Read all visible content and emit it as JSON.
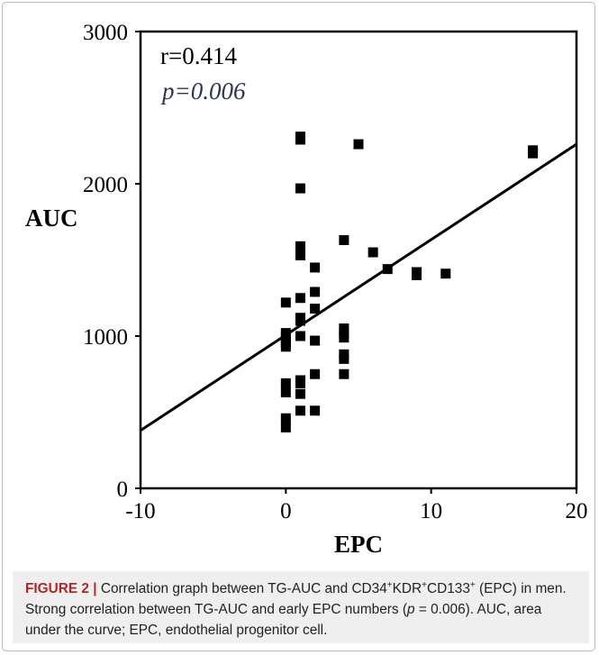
{
  "chart_data": {
    "type": "scatter",
    "xlabel": "EPC",
    "ylabel": "AUC",
    "xlim": [
      -10,
      20
    ],
    "ylim": [
      0,
      3000
    ],
    "xticks": [
      "-10",
      "0",
      "10",
      "20"
    ],
    "yticks": [
      "0",
      "1000",
      "2000",
      "3000"
    ],
    "annotations": {
      "r": "r=0.414",
      "p": "p=0.006"
    },
    "trendline": {
      "x": [
        -10,
        20
      ],
      "y": [
        380,
        2260
      ]
    },
    "points": [
      {
        "x": 0,
        "y": 1220
      },
      {
        "x": 0,
        "y": 1020
      },
      {
        "x": 0,
        "y": 990
      },
      {
        "x": 0,
        "y": 960
      },
      {
        "x": 0,
        "y": 930
      },
      {
        "x": 0,
        "y": 690
      },
      {
        "x": 0,
        "y": 630
      },
      {
        "x": 0,
        "y": 460
      },
      {
        "x": 0,
        "y": 400
      },
      {
        "x": 1,
        "y": 2310
      },
      {
        "x": 1,
        "y": 2290
      },
      {
        "x": 1,
        "y": 1970
      },
      {
        "x": 1,
        "y": 1590
      },
      {
        "x": 1,
        "y": 1530
      },
      {
        "x": 1,
        "y": 1250
      },
      {
        "x": 1,
        "y": 1120
      },
      {
        "x": 1,
        "y": 1100
      },
      {
        "x": 1,
        "y": 1000
      },
      {
        "x": 1,
        "y": 710
      },
      {
        "x": 1,
        "y": 690
      },
      {
        "x": 1,
        "y": 620
      },
      {
        "x": 1,
        "y": 510
      },
      {
        "x": 2,
        "y": 1450
      },
      {
        "x": 2,
        "y": 1290
      },
      {
        "x": 2,
        "y": 1180
      },
      {
        "x": 2,
        "y": 970
      },
      {
        "x": 2,
        "y": 750
      },
      {
        "x": 2,
        "y": 510
      },
      {
        "x": 4,
        "y": 1630
      },
      {
        "x": 4,
        "y": 1050
      },
      {
        "x": 4,
        "y": 1020
      },
      {
        "x": 4,
        "y": 990
      },
      {
        "x": 4,
        "y": 880
      },
      {
        "x": 4,
        "y": 850
      },
      {
        "x": 4,
        "y": 750
      },
      {
        "x": 5,
        "y": 2260
      },
      {
        "x": 6,
        "y": 1550
      },
      {
        "x": 7,
        "y": 1440
      },
      {
        "x": 9,
        "y": 1420
      },
      {
        "x": 9,
        "y": 1400
      },
      {
        "x": 11,
        "y": 1410
      },
      {
        "x": 17,
        "y": 2220
      },
      {
        "x": 17,
        "y": 2200
      }
    ]
  },
  "caption": {
    "label": "FIGURE 2 |",
    "text_1": " Correlation graph between TG-AUC and CD34",
    "sup_1": "+",
    "text_2": "KDR",
    "sup_2": "+",
    "text_3": "CD133",
    "sup_3": "+",
    "text_4": " (EPC) in men. Strong correlation between TG-AUC and early EPC numbers (",
    "p_italic": "p",
    "text_5": " = 0.006). AUC, area under the curve; EPC, endothelial progenitor cell."
  }
}
